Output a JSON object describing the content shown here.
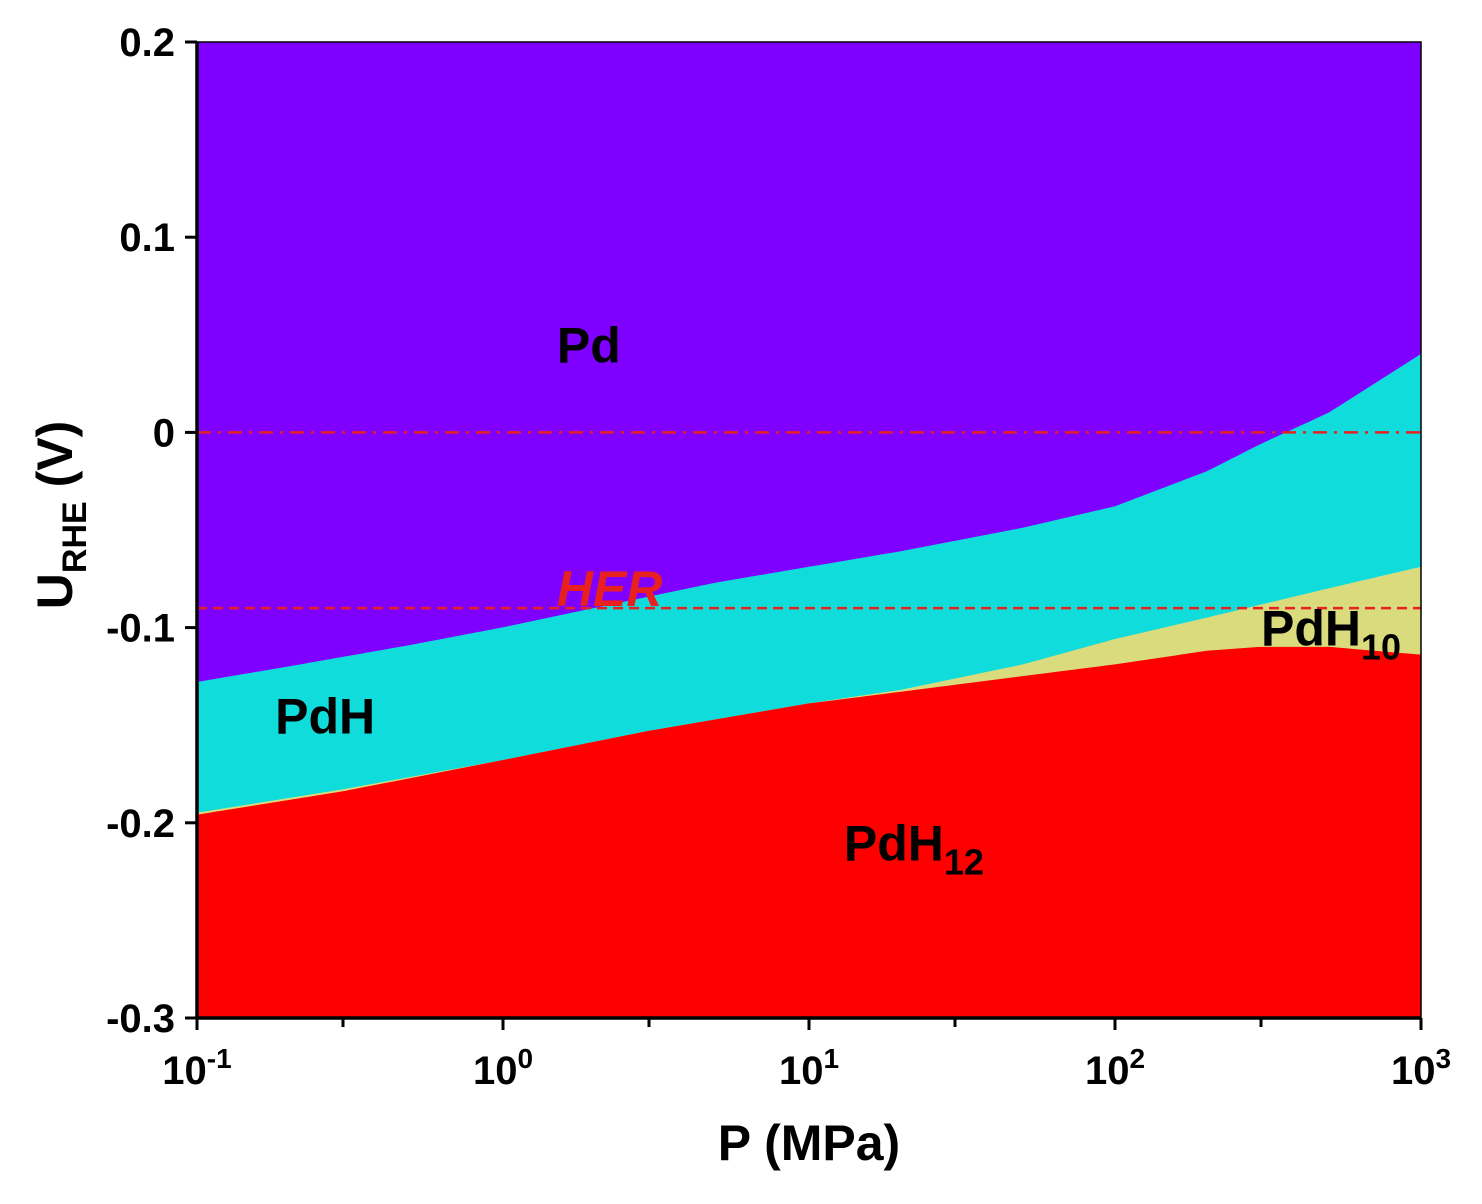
{
  "chart_data": {
    "type": "area",
    "xlabel": "P (MPa)",
    "ylabel_main": "U",
    "ylabel_sub": "RHE",
    "ylabel_unit": " (V)",
    "x_scale": "log",
    "xlim": [
      0.1,
      1000
    ],
    "ylim": [
      -0.3,
      0.2
    ],
    "x_ticks": [
      {
        "base": "10",
        "exp": "-1",
        "value": 0.1
      },
      {
        "base": "10",
        "exp": "0",
        "value": 1
      },
      {
        "base": "10",
        "exp": "1",
        "value": 10
      },
      {
        "base": "10",
        "exp": "2",
        "value": 100
      },
      {
        "base": "10",
        "exp": "3",
        "value": 1000
      }
    ],
    "x_minor_ticks": [
      0.3,
      3,
      30,
      300
    ],
    "y_ticks": [
      {
        "label": "0.2",
        "value": 0.2
      },
      {
        "label": "0.1",
        "value": 0.1
      },
      {
        "label": "0",
        "value": 0
      },
      {
        "label": "-0.1",
        "value": -0.1
      },
      {
        "label": "-0.2",
        "value": -0.2
      },
      {
        "label": "-0.3",
        "value": -0.3
      }
    ],
    "boundaries": {
      "pd_pdh": {
        "x": [
          0.1,
          0.2,
          0.5,
          1,
          2,
          5,
          10,
          20,
          50,
          100,
          200,
          300,
          500,
          1000
        ],
        "y": [
          -0.128,
          -0.12,
          -0.109,
          -0.1,
          -0.09,
          -0.077,
          -0.069,
          -0.061,
          -0.049,
          -0.038,
          -0.02,
          -0.006,
          0.01,
          0.04
        ]
      },
      "pdh_lower": {
        "x": [
          0.1,
          0.3,
          1,
          3,
          10,
          20,
          50,
          100,
          200,
          500,
          1000
        ],
        "y": [
          -0.195,
          -0.183,
          -0.168,
          -0.153,
          -0.139,
          -0.132,
          -0.119,
          -0.106,
          -0.095,
          -0.08,
          -0.069
        ]
      },
      "pdh12_upper": {
        "x": [
          0.1,
          0.3,
          1,
          3,
          10,
          20,
          50,
          100,
          200,
          300,
          500,
          700,
          1000
        ],
        "y": [
          -0.196,
          -0.184,
          -0.168,
          -0.153,
          -0.139,
          -0.133,
          -0.125,
          -0.119,
          -0.112,
          -0.11,
          -0.11,
          -0.112,
          -0.114
        ]
      }
    },
    "regions": [
      {
        "name": "Pd",
        "label": "Pd",
        "sub": "",
        "color": "#7f00ff",
        "label_x": 1.5,
        "label_y": 0.045
      },
      {
        "name": "PdH",
        "label": "PdH",
        "sub": "",
        "color": "#11dcdc",
        "label_x": 0.18,
        "label_y": -0.145
      },
      {
        "name": "PdH10",
        "label": "PdH",
        "sub": "10",
        "color": "#d9db7d",
        "label_x": 300,
        "label_y": -0.1
      },
      {
        "name": "PdH12",
        "label": "PdH",
        "sub": "12",
        "color": "#ff0000",
        "label_x": 13,
        "label_y": -0.21
      }
    ],
    "reference_lines": [
      {
        "name": "zero",
        "y": 0,
        "style": "dashdot",
        "color": "#e82020"
      },
      {
        "name": "her",
        "y": -0.09,
        "style": "dashed",
        "color": "#e82020",
        "label": "HER",
        "label_x": 1.5
      }
    ]
  }
}
